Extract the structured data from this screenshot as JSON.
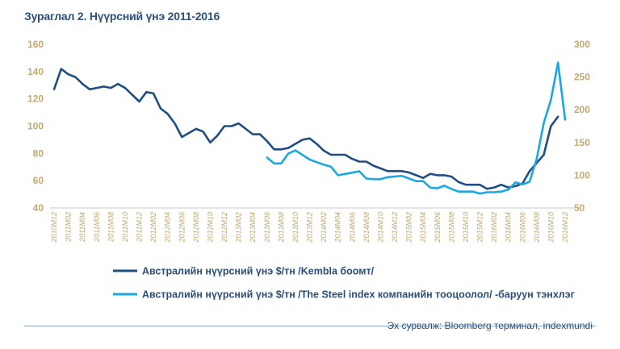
{
  "title": "Зураглал 2. Нүүрсний үнэ 2011-2016",
  "source": "Эх сурвалж: Bloomberg терминал, indexmundi",
  "colors": {
    "series1": "#1f4e82",
    "series2": "#19a9e0",
    "axis_text": "#c3a870",
    "title": "#2b4f7a"
  },
  "chart_data": {
    "type": "line",
    "title": "Зураглал 2. Нүүрсний үнэ 2011-2016",
    "x_ticks": [
      "2010M12",
      "2011M02",
      "2011M04",
      "2011M06",
      "2011M08",
      "2011M10",
      "2011M12",
      "2012M02",
      "2012M04",
      "2012M06",
      "2012M08",
      "2012M10",
      "2012M12",
      "2013M02",
      "2013M04",
      "2013M06",
      "2013M08",
      "2013M10",
      "2013M12",
      "2014M02",
      "2014M04",
      "2014M06",
      "2014M08",
      "2014M10",
      "2014M12",
      "2015M02",
      "2015M04",
      "2015M06",
      "2015M08",
      "2015M10",
      "2015M12",
      "2016M02",
      "2016M04",
      "2016M06",
      "2016M08",
      "2016M10",
      "2016M12"
    ],
    "x": [
      "2010M12",
      "2011M01",
      "2011M02",
      "2011M03",
      "2011M04",
      "2011M05",
      "2011M06",
      "2011M07",
      "2011M08",
      "2011M09",
      "2011M10",
      "2011M11",
      "2011M12",
      "2012M01",
      "2012M02",
      "2012M03",
      "2012M04",
      "2012M05",
      "2012M06",
      "2012M07",
      "2012M08",
      "2012M09",
      "2012M10",
      "2012M11",
      "2012M12",
      "2013M01",
      "2013M02",
      "2013M03",
      "2013M04",
      "2013M05",
      "2013M06",
      "2013M07",
      "2013M08",
      "2013M09",
      "2013M10",
      "2013M11",
      "2013M12",
      "2014M01",
      "2014M02",
      "2014M03",
      "2014M04",
      "2014M05",
      "2014M06",
      "2014M07",
      "2014M08",
      "2014M09",
      "2014M10",
      "2014M11",
      "2014M12",
      "2015M01",
      "2015M02",
      "2015M03",
      "2015M04",
      "2015M05",
      "2015M06",
      "2015M07",
      "2015M08",
      "2015M09",
      "2015M10",
      "2015M11",
      "2015M12",
      "2016M01",
      "2016M02",
      "2016M03",
      "2016M04",
      "2016M05",
      "2016M06",
      "2016M07",
      "2016M08",
      "2016M09",
      "2016M10",
      "2016M11",
      "2016M12"
    ],
    "y_left": {
      "ticks": [
        "40",
        "60",
        "80",
        "100",
        "120",
        "140",
        "160"
      ],
      "range": [
        40,
        160
      ]
    },
    "y_right": {
      "ticks": [
        "50",
        "100",
        "150",
        "200",
        "250",
        "300"
      ],
      "range": [
        50,
        300
      ]
    },
    "grid": false,
    "legend_position": "bottom",
    "series": [
      {
        "name": "Австралийн нүүрсний үнэ $/тн /Kembla боомт/",
        "axis": "left",
        "values": [
          127,
          142,
          138,
          136,
          131,
          127,
          128,
          129,
          128,
          131,
          128,
          123,
          118,
          125,
          124,
          113,
          109,
          102,
          92,
          95,
          98,
          96,
          88,
          93,
          100,
          100,
          102,
          98,
          94,
          94,
          89,
          83,
          83,
          84,
          87,
          90,
          91,
          87,
          82,
          79,
          79,
          79,
          76,
          74,
          74,
          71,
          69,
          67,
          67,
          67,
          66,
          64,
          62,
          65,
          64,
          64,
          63,
          59,
          57,
          57,
          57,
          54,
          55,
          57,
          55,
          56,
          58,
          67,
          73,
          79,
          100,
          107,
          null
        ]
      },
      {
        "name": "Австралийн нүүрсний үнэ $/тн /The Steel index компанийн тооцоолол/ -баруун тэнхлэг",
        "axis": "right",
        "values": [
          null,
          null,
          null,
          null,
          null,
          null,
          null,
          null,
          null,
          null,
          null,
          null,
          null,
          null,
          null,
          null,
          null,
          null,
          null,
          null,
          null,
          null,
          null,
          null,
          null,
          null,
          null,
          null,
          null,
          null,
          127,
          118,
          118,
          133,
          138,
          131,
          124,
          120,
          116,
          113,
          100,
          102,
          104,
          106,
          95,
          94,
          94,
          97,
          98,
          99,
          95,
          91,
          91,
          81,
          80,
          84,
          79,
          75,
          75,
          75,
          72,
          74,
          74,
          75,
          78,
          89,
          86,
          90,
          125,
          180,
          215,
          272,
          185
        ]
      }
    ]
  }
}
